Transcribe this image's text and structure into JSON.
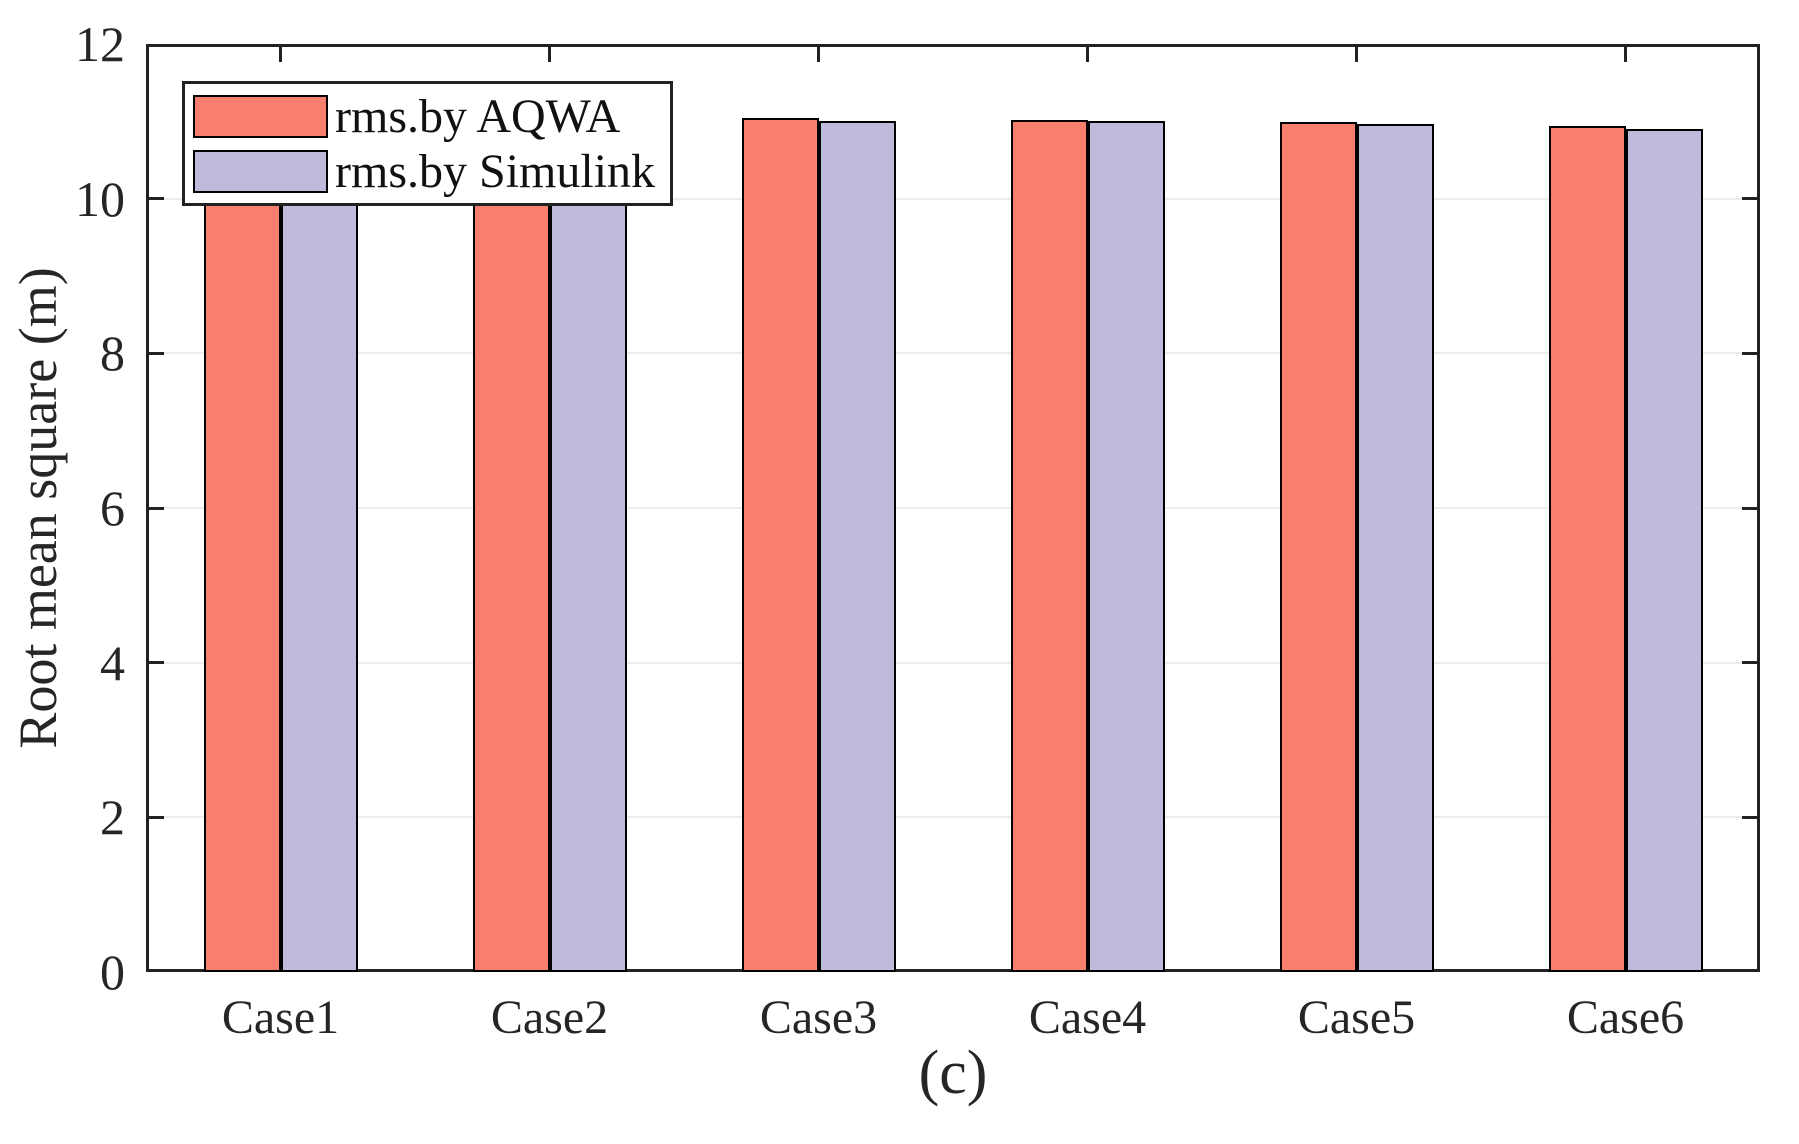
{
  "figure": {
    "caption": "(c)"
  },
  "chart_data": {
    "type": "bar",
    "title": "",
    "xlabel": "",
    "ylabel": "Root mean square (m)",
    "categories": [
      "Case1",
      "Case2",
      "Case3",
      "Case4",
      "Case5",
      "Case6"
    ],
    "series": [
      {
        "name": "rms.by AQWA",
        "color": "#F87E6D",
        "values": [
          11.05,
          11.04,
          11.04,
          11.02,
          10.99,
          10.94
        ]
      },
      {
        "name": "rms.by Simulink",
        "color": "#BFB9DB",
        "values": [
          11.03,
          11.02,
          11.01,
          11.0,
          10.96,
          10.9
        ]
      }
    ],
    "ylim": [
      0,
      12
    ],
    "yticks": [
      0,
      2,
      4,
      6,
      8,
      10,
      12
    ],
    "grid": "horizontal",
    "legend_position": "top-left",
    "colors": {
      "bar_edge": "#000000",
      "axis": "#222222",
      "gridline": "#ececec",
      "background": "#ffffff"
    }
  }
}
